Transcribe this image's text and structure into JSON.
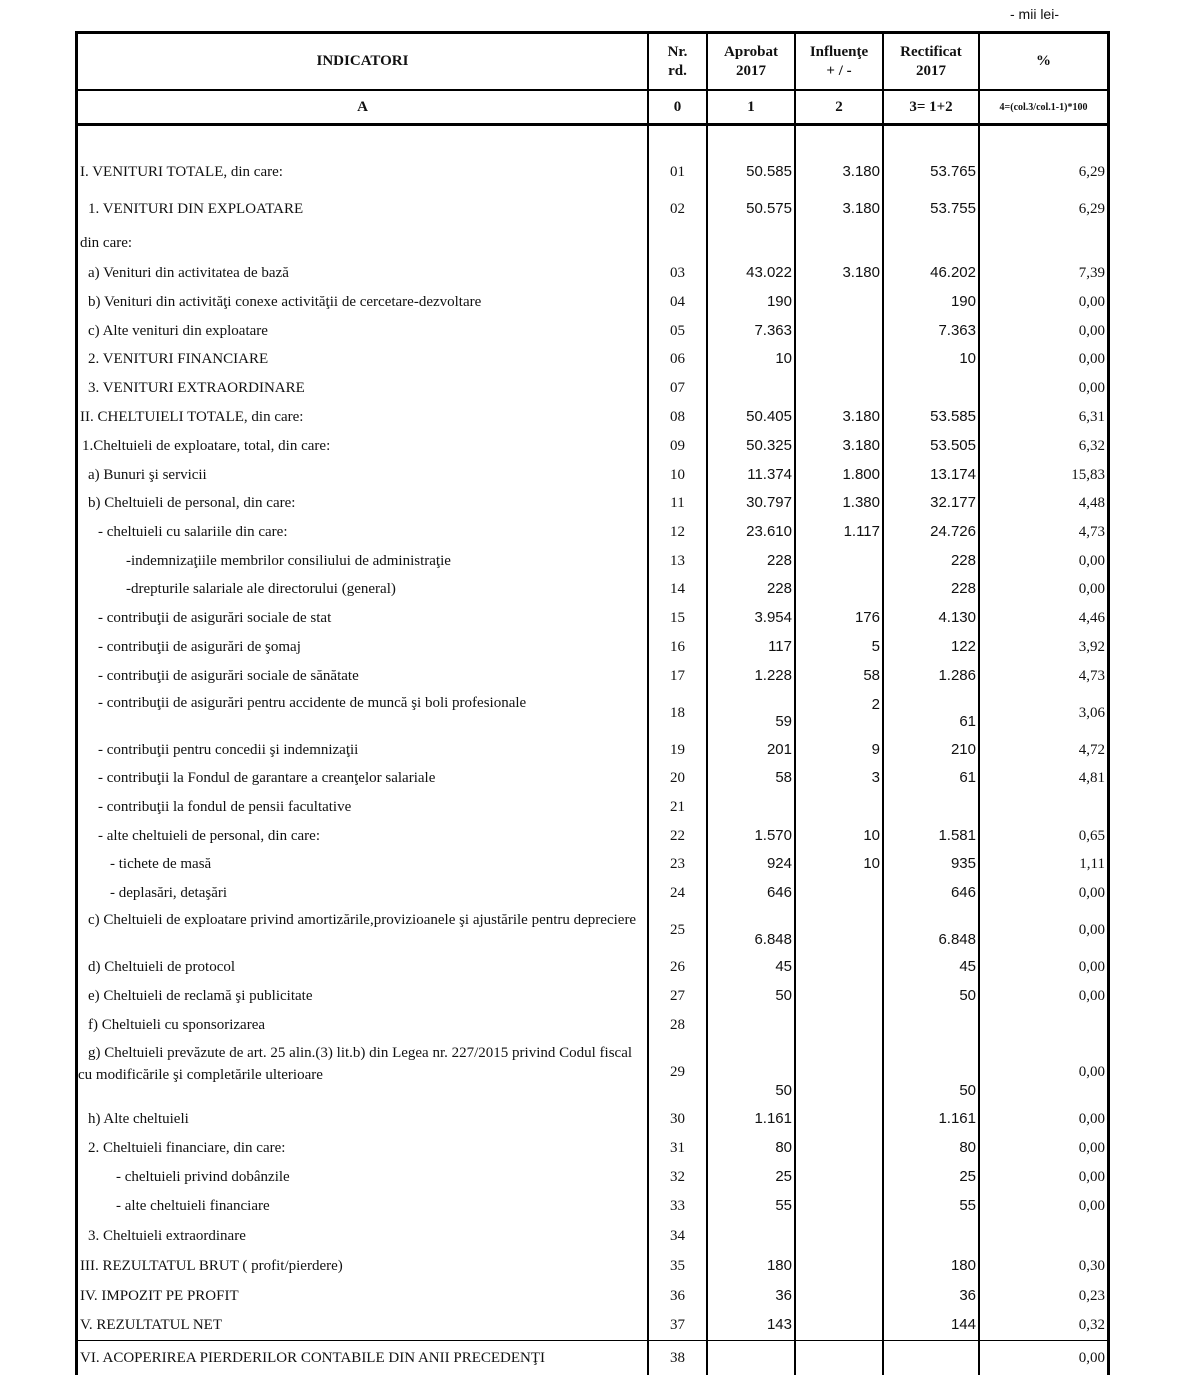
{
  "unit": "- mii lei-",
  "table": {
    "header": [
      [
        "INDICATORI"
      ],
      [
        "Nr.",
        "rd."
      ],
      [
        "Aprobat",
        "2017"
      ],
      [
        "Influenţe",
        "+ / -"
      ],
      [
        "Rectificat",
        "2017"
      ],
      [
        "%"
      ]
    ],
    "subheader": [
      "A",
      "0",
      "1",
      "2",
      "3= 1+2",
      "4=(col.3/col.1-1)*100"
    ],
    "rows": [
      [
        "I. VENITURI TOTALE, din care:",
        "01",
        "50.585",
        "3.180",
        "53.765",
        "6,29"
      ],
      [
        "1. VENITURI DIN EXPLOATARE",
        "02",
        "50.575",
        "3.180",
        "53.755",
        "6,29"
      ],
      [
        "din care:",
        null,
        null,
        null,
        null,
        null
      ],
      [
        "a) Venituri din activitatea de bază",
        "03",
        "43.022",
        "3.180",
        "46.202",
        "7,39"
      ],
      [
        "b) Venituri din activităţi conexe activităţii de cercetare-dezvoltare",
        "04",
        "190",
        null,
        "190",
        "0,00"
      ],
      [
        "c) Alte venituri din exploatare",
        "05",
        "7.363",
        null,
        "7.363",
        "0,00"
      ],
      [
        "2. VENITURI FINANCIARE",
        "06",
        "10",
        null,
        "10",
        "0,00"
      ],
      [
        "3. VENITURI EXTRAORDINARE",
        "07",
        null,
        null,
        null,
        "0,00"
      ],
      [
        "II. CHELTUIELI TOTALE, din care:",
        "08",
        "50.405",
        "3.180",
        "53.585",
        "6,31"
      ],
      [
        "1.Cheltuieli de exploatare, total, din care:",
        "09",
        "50.325",
        "3.180",
        "53.505",
        "6,32"
      ],
      [
        "a) Bunuri şi servicii",
        "10",
        "11.374",
        "1.800",
        "13.174",
        "15,83"
      ],
      [
        "b) Cheltuieli de personal, din care:",
        "11",
        "30.797",
        "1.380",
        "32.177",
        "4,48"
      ],
      [
        "- cheltuieli cu salariile din care:",
        "12",
        "23.610",
        "1.117",
        "24.726",
        "4,73"
      ],
      [
        "-indemnizaţiile membrilor consiliului de administraţie",
        "13",
        "228",
        null,
        "228",
        "0,00"
      ],
      [
        "-drepturile salariale ale directorului (general)",
        "14",
        "228",
        null,
        "228",
        "0,00"
      ],
      [
        "- contribuţii de asigurări sociale de stat",
        "15",
        "3.954",
        "176",
        "4.130",
        "4,46"
      ],
      [
        "- contribuţii de asigurări de şomaj",
        "16",
        "117",
        "5",
        "122",
        "3,92"
      ],
      [
        "- contribuţii de asigurări sociale de sănătate",
        "17",
        "1.228",
        "58",
        "1.286",
        "4,73"
      ],
      [
        "- contribuţii de asigurări pentru accidente de muncă şi boli profesionale",
        "18",
        "59",
        "2",
        "61",
        "3,06"
      ],
      [
        "- contribuţii pentru concedii şi indemnizaţii",
        "19",
        "201",
        "9",
        "210",
        "4,72"
      ],
      [
        "- contribuţii la Fondul de garantare a creanţelor salariale",
        "20",
        "58",
        "3",
        "61",
        "4,81"
      ],
      [
        "- contribuţii la fondul de pensii facultative",
        "21",
        null,
        null,
        null,
        null
      ],
      [
        "- alte cheltuieli de personal, din care:",
        "22",
        "1.570",
        "10",
        "1.581",
        "0,65"
      ],
      [
        "- tichete de masă",
        "23",
        "924",
        "10",
        "935",
        "1,11"
      ],
      [
        "- deplasări, detaşări",
        "24",
        "646",
        null,
        "646",
        "0,00"
      ],
      [
        "c) Cheltuieli de exploatare privind amortizările,provizioanele şi ajustările pentru depreciere",
        "25",
        "6.848",
        null,
        "6.848",
        "0,00"
      ],
      [
        "d) Cheltuieli de protocol",
        "26",
        "45",
        null,
        "45",
        "0,00"
      ],
      [
        "e) Cheltuieli de reclamă şi publicitate",
        "27",
        "50",
        null,
        "50",
        "0,00"
      ],
      [
        "f) Cheltuieli cu sponsorizarea",
        "28",
        null,
        null,
        null,
        null
      ],
      [
        "g) Cheltuieli prevăzute de art. 25 alin.(3) lit.b) din Legea nr. 227/2015 privind Codul fiscal cu modificările şi completările ulterioare",
        "29",
        "50",
        null,
        "50",
        "0,00"
      ],
      [
        "h) Alte cheltuieli",
        "30",
        "1.161",
        null,
        "1.161",
        "0,00"
      ],
      [
        "2. Cheltuieli financiare, din care:",
        "31",
        "80",
        null,
        "80",
        "0,00"
      ],
      [
        "- cheltuieli privind dobânzile",
        "32",
        "25",
        null,
        "25",
        "0,00"
      ],
      [
        "- alte cheltuieli financiare",
        "33",
        "55",
        null,
        "55",
        "0,00"
      ],
      [
        "3. Cheltuieli extraordinare",
        "34",
        null,
        null,
        null,
        null
      ],
      [
        "III. REZULTATUL BRUT ( profit/pierdere)",
        "35",
        "180",
        null,
        "180",
        "0,30"
      ],
      [
        "IV. IMPOZIT PE PROFIT",
        "36",
        "36",
        null,
        "36",
        "0,23"
      ],
      [
        "V. REZULTATUL NET",
        "37",
        "143",
        null,
        "144",
        "0,32"
      ],
      [
        "VI. ACOPERIREA PIERDERILOR CONTABILE DIN ANII PRECEDENŢI",
        "38",
        null,
        null,
        null,
        "0,00"
      ]
    ]
  }
}
